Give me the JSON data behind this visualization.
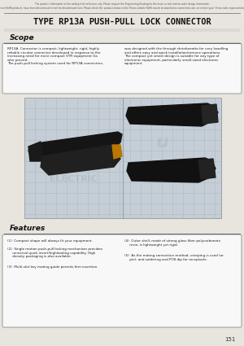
{
  "title": "TYPE RP13A PUSH-PULL LOCK CONNECTOR",
  "header_note1": "The product  information in this catalog is for reference only. Please request the Engineering Drawing for the most current and accurate design information.",
  "header_note2": "All non-RoHS products  have been discontinued or will be discontinued soon. Please check the  product status on the Hirose website RoHS search at www.hirose-connectors.com, or contact your  Hirose sales representative.",
  "scope_title": "Scope",
  "scope_text_left": "RP13A  Connector is compact, lightweight, rigid, highly\nreliable circular connector developed in response to the\nincreasing need for more compact VTR equipment Oa\nwho proved.\nThe push-pull locking system used for RP13A connectors,",
  "scope_text_right": "was designed with the through shrinkwratto for very handling\nand offers easy and quick installation/remove operations.\nThe compact yet smart design is suitable for any type of\nelectronic equipment, particularly small-sized electronic\nequipment.",
  "features_title": "Features",
  "features_left_1": "(1)  Compact shape will always fit your equipment.",
  "features_left_2": "(2)  Single motion push-pull locking mechanism provides\n     universal quick insert/highloading capability. High\n     density packaging is also available.",
  "features_left_3": "(3)  Multi-slot key mating guide permits firm insertion.",
  "features_right_1": "(4)  Outer shell, made of strong glass fiber polycarbonate\n     resin, is lightweight yet rigid.",
  "features_right_2": "(5)  As the mating connection method, crimping is used (or\n     pin), and soldering and PCB dip for receptacle.",
  "page_number": "151",
  "bg_color": "#e8e4de",
  "box_bg": "#f8f8f8",
  "title_color": "#111111",
  "text_color": "#222222",
  "border_color": "#999999",
  "img_bg_color": "#c5ced6",
  "grid_color": "#aab4bc",
  "watermark_color": "#8099a8"
}
